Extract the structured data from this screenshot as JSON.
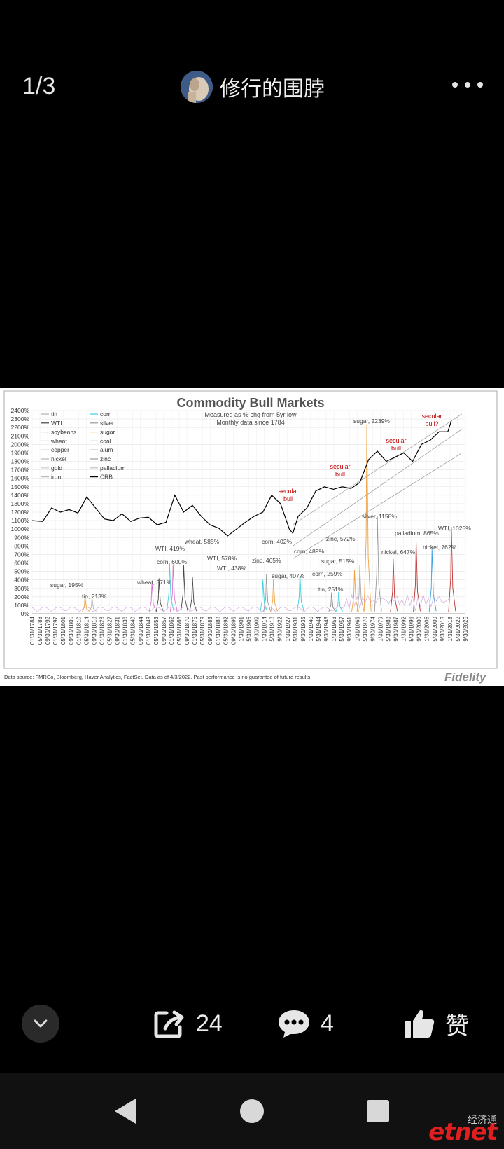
{
  "viewer": {
    "page_counter": "1/3",
    "username": "修行的围脖"
  },
  "actions": {
    "share_count": "24",
    "comment_count": "4",
    "like_label": "赞"
  },
  "watermark": {
    "top_text": "经济通",
    "main_text": "etnet"
  },
  "colors": {
    "background": "#000000",
    "nav_bar": "#111111",
    "highlight_red": "#c00000"
  },
  "chart_data": {
    "type": "line",
    "title": "Commodity Bull Markets",
    "subtitle_lines": [
      "Measured as % chg from 5yr low",
      "Monthly data since 1784"
    ],
    "ylim": [
      0,
      2400
    ],
    "yticks": [
      "0%",
      "100%",
      "200%",
      "300%",
      "400%",
      "500%",
      "600%",
      "700%",
      "800%",
      "900%",
      "1000%",
      "1100%",
      "1200%",
      "1300%",
      "1400%",
      "1500%",
      "1600%",
      "1700%",
      "1800%",
      "1900%",
      "2000%",
      "2100%",
      "2200%",
      "2300%",
      "2400%"
    ],
    "xlim": [
      1784,
      2030
    ],
    "xticks": [
      "01/31/1784",
      "05/31/1788",
      "09/30/1792",
      "01/31/1797",
      "05/31/1801",
      "09/30/1805",
      "01/31/1810",
      "05/31/1814",
      "09/30/1818",
      "01/31/1823",
      "05/31/1827",
      "09/30/1831",
      "01/31/1836",
      "05/31/1840",
      "09/30/1844",
      "01/31/1849",
      "05/31/1853",
      "09/30/1857",
      "01/31/1862",
      "05/31/1866",
      "09/30/1870",
      "01/31/1875",
      "05/31/1879",
      "09/30/1883",
      "01/31/1888",
      "05/31/1892",
      "09/30/1896",
      "1/31/1901",
      "5/31/1905",
      "9/30/1909",
      "1/31/1914",
      "5/31/1918",
      "9/30/1922",
      "1/31/1927",
      "5/31/1931",
      "9/30/1935",
      "1/31/1940",
      "5/31/1944",
      "9/30/1948",
      "1/31/1953",
      "5/31/1957",
      "9/30/1961",
      "1/31/1966",
      "5/31/1970",
      "9/30/1974",
      "1/31/1979",
      "5/31/1983",
      "9/30/1987",
      "1/31/1992",
      "5/31/1996",
      "9/30/2000",
      "1/31/2005",
      "5/31/2009",
      "9/30/2013",
      "1/31/2018",
      "5/31/2022",
      "9/30/2026"
    ],
    "legend": [
      "tin",
      "corn",
      "WTI",
      "silver",
      "soybeans",
      "sugar",
      "wheat",
      "coal",
      "copper",
      "alum",
      "nickel",
      "zinc",
      "gold",
      "palladium",
      "iron",
      "CRB"
    ],
    "legend_colors": [
      "#b0b0b0",
      "#3fd0e0",
      "#444444",
      "#9a9a9a",
      "#b8b8b8",
      "#f0a040",
      "#bbbbbb",
      "#a8a8a8",
      "#c8c8c8",
      "#b0b0b0",
      "#b4b4b4",
      "#9c9c9c",
      "#cccccc",
      "#c0c0c0",
      "#b8b8b8",
      "#000000"
    ],
    "crb_series": {
      "name": "CRB",
      "x": [
        1784,
        1790,
        1795,
        1800,
        1805,
        1810,
        1815,
        1820,
        1825,
        1830,
        1835,
        1840,
        1845,
        1850,
        1855,
        1860,
        1865,
        1870,
        1875,
        1880,
        1885,
        1890,
        1895,
        1900,
        1905,
        1910,
        1915,
        1920,
        1925,
        1930,
        1932,
        1935,
        1940,
        1945,
        1950,
        1955,
        1960,
        1965,
        1970,
        1975,
        1980,
        1985,
        1990,
        1995,
        2000,
        2005,
        2010,
        2015,
        2020,
        2022
      ],
      "y": [
        1100,
        1090,
        1250,
        1200,
        1230,
        1190,
        1380,
        1250,
        1120,
        1100,
        1180,
        1090,
        1130,
        1140,
        1050,
        1080,
        1400,
        1200,
        1280,
        1150,
        1050,
        1010,
        920,
        1000,
        1080,
        1150,
        1200,
        1400,
        1300,
        1000,
        950,
        1150,
        1250,
        1450,
        1500,
        1470,
        1500,
        1480,
        1550,
        1820,
        1920,
        1800,
        1850,
        1900,
        1800,
        2000,
        2050,
        2150,
        2150,
        2280
      ]
    },
    "annotations": [
      "sugar, 195%",
      "tin, 213%",
      "wheat, 371%",
      "WTI, 419%",
      "corn, 600%",
      "wheat, 585%",
      "WTI, 578%",
      "WTI, 438%",
      "corn, 402%",
      "zinc, 465%",
      "sugar, 407%",
      "corn, 489%",
      "zinc, 572%",
      "sugar, 515%",
      "corn, 259%",
      "tin, 251%",
      "sugar, 2239%",
      "silver, 1158%",
      "palladium, 865%",
      "nickel, 647%",
      "nickel, 762%",
      "WTI, 1025%"
    ],
    "spikes": [
      {
        "x": 1814,
        "y": 213
      },
      {
        "x": 1818,
        "y": 195
      },
      {
        "x": 1852,
        "y": 371
      },
      {
        "x": 1856,
        "y": 419
      },
      {
        "x": 1862,
        "y": 600
      },
      {
        "x": 1864,
        "y": 585
      },
      {
        "x": 1870,
        "y": 578
      },
      {
        "x": 1875,
        "y": 438
      },
      {
        "x": 1915,
        "y": 402
      },
      {
        "x": 1917,
        "y": 465
      },
      {
        "x": 1921,
        "y": 407
      },
      {
        "x": 1936,
        "y": 489
      },
      {
        "x": 1954,
        "y": 251
      },
      {
        "x": 1958,
        "y": 259
      },
      {
        "x": 1967,
        "y": 515
      },
      {
        "x": 1970,
        "y": 572
      },
      {
        "x": 1974,
        "y": 2239
      },
      {
        "x": 1980,
        "y": 1158
      },
      {
        "x": 1989,
        "y": 647
      },
      {
        "x": 2002,
        "y": 865
      },
      {
        "x": 2011,
        "y": 762
      },
      {
        "x": 2022,
        "y": 1025
      }
    ],
    "secular_labels": [
      "secular bull",
      "secular bull",
      "secular bull",
      "secular bull?"
    ],
    "footnote": "Data source: FMRCo, Bloomberg, Haver Analytics, FactSet. Data as of 4/3/2022. Past performance is no guarantee of future results.",
    "brand": "Fidelity"
  }
}
